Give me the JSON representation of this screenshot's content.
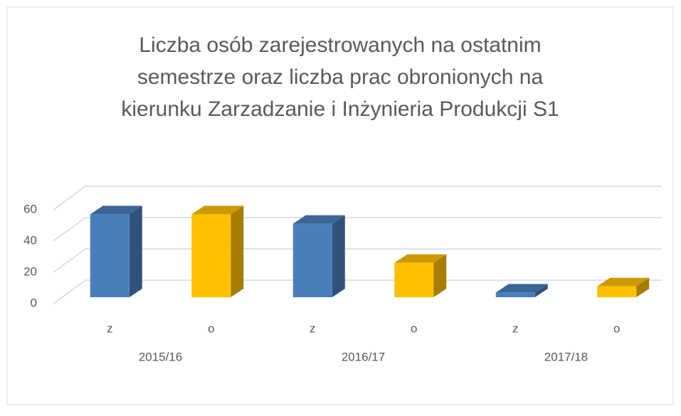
{
  "chart_data": {
    "type": "bar3d",
    "title": [
      "Liczba osób zarejestrowanych na ostatnim",
      "semestrze oraz liczba prac obronionych na",
      "kierunku Zarzadzanie i Inżynieria Produkcji S1"
    ],
    "categories": [
      "z",
      "o",
      "z",
      "o",
      "z",
      "o"
    ],
    "groups": [
      "2015/16",
      "2016/17",
      "2017/18"
    ],
    "values": [
      53,
      53,
      47,
      22,
      3,
      7
    ],
    "colors": [
      "#4a7ebb",
      "#ffc000",
      "#4a7ebb",
      "#ffc000",
      "#4a7ebb",
      "#ffc000"
    ],
    "ylim": [
      0,
      60
    ],
    "yticks": [
      0,
      20,
      40,
      60
    ],
    "grid": true
  }
}
